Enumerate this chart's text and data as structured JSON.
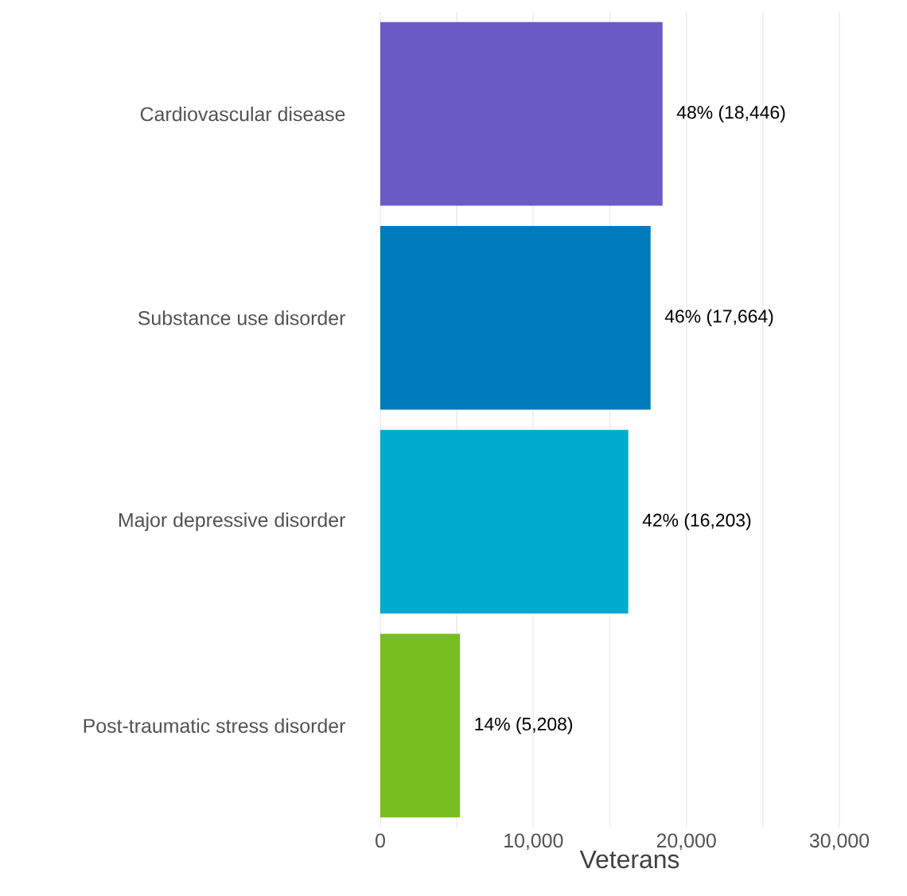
{
  "chart_data": {
    "type": "bar",
    "orientation": "horizontal",
    "xlabel": "Veterans",
    "categories": [
      "Cardiovascular disease",
      "Substance use disorder",
      "Major depressive disorder",
      "Post-traumatic stress disorder"
    ],
    "values": [
      18446,
      17664,
      16203,
      5208
    ],
    "value_labels": [
      "48% (18,446)",
      "46% (17,664)",
      "42% (16,203)",
      "14% (5,208)"
    ],
    "colors": [
      "#6a5bc6",
      "#007bba",
      "#00aacf",
      "#78be20"
    ],
    "xlim": [
      0,
      30000
    ],
    "xticks": [
      0,
      {
        "value": 5000,
        "label": null
      },
      {
        "value": 10000,
        "label": "10,000"
      },
      {
        "value": 15000,
        "label": null
      },
      {
        "value": 20000,
        "label": "20,000"
      },
      {
        "value": 25000,
        "label": null
      },
      {
        "value": 30000,
        "label": "30,000"
      }
    ],
    "grid": "x"
  }
}
